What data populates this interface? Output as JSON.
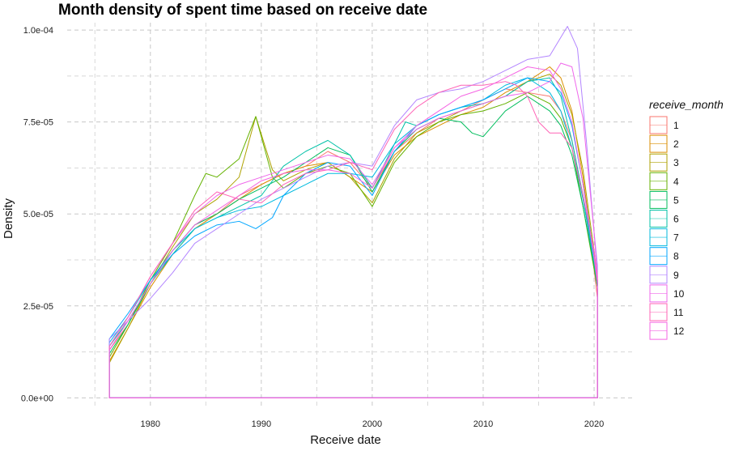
{
  "chart_data": {
    "type": "area",
    "title": "Month density of spent time based on receive date",
    "xlabel": "Receive date",
    "ylabel": "Density",
    "xlim": [
      1972.5,
      2023.5
    ],
    "ylim": [
      -3e-06,
      0.000102
    ],
    "x_ticks": [
      1980,
      1990,
      2000,
      2010,
      2020
    ],
    "x_tick_labels": [
      "1980",
      "1990",
      "2000",
      "2010",
      "2020"
    ],
    "y_ticks": [
      0,
      2.5e-05,
      5e-05,
      7.5e-05,
      0.0001
    ],
    "y_tick_labels": [
      "0.0e+00",
      "2.5e-05",
      "5.0e-05",
      "7.5e-05",
      "1.0e-04"
    ],
    "grid": true,
    "legend_title": "receive_month",
    "legend_position": "right",
    "series": [
      {
        "name": "1",
        "color": "#F8766D",
        "x": [
          1976.3,
          1978,
          1980,
          1982,
          1984,
          1986,
          1988,
          1990,
          1992,
          1994,
          1996,
          1998,
          2000,
          2002,
          2004,
          2006,
          2008,
          2010,
          2012,
          2014,
          2016,
          2017,
          2018,
          2019,
          2020,
          2020.3
        ],
        "y": [
          1.3e-05,
          2e-05,
          3.2e-05,
          4e-05,
          4.7e-05,
          5e-05,
          5.5e-05,
          5.8e-05,
          6.1e-05,
          6.3e-05,
          6.7e-05,
          6.4e-05,
          5.7e-05,
          6.7e-05,
          7.2e-05,
          7.6e-05,
          7.8e-05,
          8.1e-05,
          8.4e-05,
          8.3e-05,
          8.2e-05,
          7.8e-05,
          7e-05,
          5.5e-05,
          3.5e-05,
          2.7e-05
        ]
      },
      {
        "name": "2",
        "color": "#DB8E00",
        "x": [
          1976.3,
          1978,
          1980,
          1982,
          1984,
          1986,
          1988,
          1990,
          1992,
          1994,
          1996,
          1998,
          2000,
          2002,
          2004,
          2006,
          2008,
          2010,
          2012,
          2014,
          2016,
          2017,
          2018,
          2019,
          2020,
          2020.3
        ],
        "y": [
          1e-05,
          1.9e-05,
          3e-05,
          3.9e-05,
          4.6e-05,
          5e-05,
          5.4e-05,
          5.8e-05,
          6.1e-05,
          6.3e-05,
          6.4e-05,
          6e-05,
          5.6e-05,
          6.6e-05,
          7.1e-05,
          7.4e-05,
          7.7e-05,
          7.9e-05,
          8.3e-05,
          8.6e-05,
          9e-05,
          8.7e-05,
          7.8e-05,
          6e-05,
          3.8e-05,
          3e-05
        ]
      },
      {
        "name": "3",
        "color": "#AEA200",
        "x": [
          1976.3,
          1978,
          1980,
          1982,
          1984,
          1986,
          1988,
          1989.5,
          1991,
          1992,
          1994,
          1996,
          1998,
          2000,
          2002,
          2004,
          2006,
          2008,
          2010,
          2012,
          2014,
          2016,
          2017,
          2018,
          2019,
          2020,
          2020.3
        ],
        "y": [
          9.5e-06,
          1.9e-05,
          3.1e-05,
          4.1e-05,
          5e-05,
          5.4e-05,
          6e-05,
          7.65e-05,
          6.2e-05,
          5.9e-05,
          6.2e-05,
          6.4e-05,
          6e-05,
          5.3e-05,
          6.5e-05,
          7.2e-05,
          7.5e-05,
          7.8e-05,
          8e-05,
          8.2e-05,
          8.6e-05,
          8.8e-05,
          8.5e-05,
          7.7e-05,
          6.2e-05,
          4e-05,
          3.2e-05
        ]
      },
      {
        "name": "4",
        "color": "#64B200",
        "x": [
          1976.3,
          1978,
          1980,
          1982,
          1984,
          1985,
          1986,
          1988,
          1989.5,
          1991,
          1992,
          1994,
          1996,
          1998,
          2000,
          2002,
          2004,
          2006,
          2008,
          2010,
          2012,
          2014,
          2016,
          2017,
          2018,
          2019,
          2020,
          2020.3
        ],
        "y": [
          1.1e-05,
          2e-05,
          3.2e-05,
          4.2e-05,
          5.5e-05,
          6.1e-05,
          6e-05,
          6.5e-05,
          7.65e-05,
          6e-05,
          5.7e-05,
          6.1e-05,
          6.3e-05,
          6.1e-05,
          5.2e-05,
          6.4e-05,
          7.1e-05,
          7.5e-05,
          7.7e-05,
          7.8e-05,
          8e-05,
          8.3e-05,
          8e-05,
          7.6e-05,
          6.8e-05,
          5.2e-05,
          3.5e-05,
          3e-05
        ]
      },
      {
        "name": "5",
        "color": "#00BD5C",
        "x": [
          1976.3,
          1978,
          1980,
          1982,
          1984,
          1986,
          1988,
          1990,
          1992,
          1994,
          1996,
          1998,
          2000,
          2002,
          2004,
          2006,
          2008,
          2009,
          2010,
          2012,
          2014,
          2016,
          2017,
          2018,
          2019,
          2020,
          2020.3
        ],
        "y": [
          1.2e-05,
          2e-05,
          3.1e-05,
          4e-05,
          4.7e-05,
          5e-05,
          5.4e-05,
          5.7e-05,
          6e-05,
          6.4e-05,
          6.8e-05,
          6.6e-05,
          5.6e-05,
          6.7e-05,
          7.3e-05,
          7.6e-05,
          7.5e-05,
          7.2e-05,
          7.1e-05,
          7.8e-05,
          8.2e-05,
          7.8e-05,
          7.4e-05,
          6.6e-05,
          5.2e-05,
          3.6e-05,
          3e-05
        ]
      },
      {
        "name": "6",
        "color": "#00C1A7",
        "x": [
          1976.3,
          1978,
          1980,
          1982,
          1984,
          1986,
          1988,
          1990,
          1992,
          1994,
          1996,
          1998,
          2000,
          2002,
          2003,
          2004,
          2006,
          2008,
          2010,
          2012,
          2014,
          2016,
          2017,
          2018,
          2019,
          2020,
          2020.3
        ],
        "y": [
          1.4e-05,
          2.1e-05,
          3.1e-05,
          3.9e-05,
          4.6e-05,
          4.9e-05,
          5.2e-05,
          5.5e-05,
          6.3e-05,
          6.7e-05,
          7e-05,
          6.6e-05,
          5.7e-05,
          6.9e-05,
          7.5e-05,
          7.4e-05,
          7.7e-05,
          7.9e-05,
          8e-05,
          8.2e-05,
          8.6e-05,
          8.7e-05,
          8.2e-05,
          7e-05,
          5.5e-05,
          3.8e-05,
          3.2e-05
        ]
      },
      {
        "name": "7",
        "color": "#00BADE",
        "x": [
          1976.3,
          1978,
          1980,
          1982,
          1984,
          1986,
          1988,
          1990,
          1992,
          1994,
          1996,
          1998,
          2000,
          2002,
          2004,
          2006,
          2008,
          2010,
          2012,
          2014,
          2016,
          2017,
          2018,
          2019,
          2020,
          2020.3
        ],
        "y": [
          1.5e-05,
          2.2e-05,
          3.2e-05,
          4e-05,
          4.6e-05,
          4.9e-05,
          5.1e-05,
          5.2e-05,
          5.5e-05,
          5.8e-05,
          6.1e-05,
          6.1e-05,
          6e-05,
          6.9e-05,
          7.4e-05,
          7.7e-05,
          7.9e-05,
          8.1e-05,
          8.5e-05,
          8.7e-05,
          8.3e-05,
          7.8e-05,
          6.8e-05,
          5.4e-05,
          3.7e-05,
          3.1e-05
        ]
      },
      {
        "name": "8",
        "color": "#00A6FF",
        "x": [
          1976.3,
          1978,
          1980,
          1982,
          1984,
          1986,
          1988,
          1989.5,
          1991,
          1992,
          1994,
          1996,
          1998,
          2000,
          2002,
          2004,
          2006,
          2008,
          2010,
          2012,
          2014,
          2016,
          2017,
          2018,
          2019,
          2020,
          2020.3
        ],
        "y": [
          1.6e-05,
          2.3e-05,
          3.2e-05,
          3.9e-05,
          4.4e-05,
          4.7e-05,
          4.8e-05,
          4.6e-05,
          4.9e-05,
          5.5e-05,
          6.1e-05,
          6.4e-05,
          6.3e-05,
          5.5e-05,
          6.7e-05,
          7.4e-05,
          7.7e-05,
          7.9e-05,
          8.1e-05,
          8.4e-05,
          8.7e-05,
          8.6e-05,
          8.3e-05,
          7.4e-05,
          5.8e-05,
          3.9e-05,
          3.2e-05
        ]
      },
      {
        "name": "9",
        "color": "#B385FF",
        "x": [
          1976.3,
          1978,
          1980,
          1982,
          1984,
          1986,
          1988,
          1990,
          1992,
          1994,
          1996,
          1998,
          2000,
          2002,
          2004,
          2006,
          2008,
          2010,
          2012,
          2014,
          2016,
          2017,
          2017.6,
          2018.5,
          2019.3,
          2020,
          2020.3
        ],
        "y": [
          1.6e-05,
          2.1e-05,
          2.7e-05,
          3.4e-05,
          4.2e-05,
          4.6e-05,
          5e-05,
          5.4e-05,
          5.7e-05,
          6e-05,
          6.3e-05,
          6.4e-05,
          6.3e-05,
          7.4e-05,
          8.1e-05,
          8.3e-05,
          8.4e-05,
          8.6e-05,
          8.9e-05,
          9.2e-05,
          9.3e-05,
          9.8e-05,
          0.000101,
          9.5e-05,
          7e-05,
          4.5e-05,
          3.6e-05
        ]
      },
      {
        "name": "10",
        "color": "#EF67EB",
        "x": [
          1976.3,
          1978,
          1980,
          1982,
          1984,
          1986,
          1988,
          1990,
          1992,
          1994,
          1996,
          1998,
          2000,
          2002,
          2004,
          2006,
          2008,
          2010,
          2012,
          2014,
          2016,
          2017,
          2018,
          2019,
          2020,
          2020.3
        ],
        "y": [
          1.4e-05,
          2.2e-05,
          3.3e-05,
          4.2e-05,
          5e-05,
          5.5e-05,
          5.8e-05,
          6e-05,
          6.2e-05,
          6.4e-05,
          6.6e-05,
          6.5e-05,
          5.8e-05,
          6.8e-05,
          7.3e-05,
          7.6e-05,
          7.8e-05,
          8e-05,
          8.2e-05,
          8.3e-05,
          8.6e-05,
          9.1e-05,
          9e-05,
          7.6e-05,
          4.5e-05,
          3.3e-05
        ]
      },
      {
        "name": "11",
        "color": "#FF63B6",
        "x": [
          1976.3,
          1978,
          1980,
          1982,
          1984,
          1986,
          1988,
          1990,
          1992,
          1994,
          1996,
          1998,
          2000,
          2002,
          2004,
          2006,
          2008,
          2010,
          2012,
          2013,
          2014,
          2015,
          2016,
          2017,
          2018,
          2019,
          2020,
          2020.3
        ],
        "y": [
          1.4e-05,
          2.2e-05,
          3.3e-05,
          4.2e-05,
          5.1e-05,
          5.6e-05,
          5.4e-05,
          5.3e-05,
          5.8e-05,
          6.1e-05,
          6.2e-05,
          6.4e-05,
          6.2e-05,
          7.3e-05,
          7.9e-05,
          8.3e-05,
          8.5e-05,
          8.5e-05,
          8.6e-05,
          8.5e-05,
          8.2e-05,
          7.5e-05,
          7.2e-05,
          7.2e-05,
          6.8e-05,
          5.5e-05,
          4e-05,
          3.2e-05
        ]
      },
      {
        "name": "12",
        "color": "#F564E3",
        "x": [
          1976.3,
          1978,
          1980,
          1982,
          1984,
          1986,
          1988,
          1990,
          1992,
          1994,
          1996,
          1998,
          2000,
          2002,
          2004,
          2006,
          2008,
          2010,
          2012,
          2014,
          2016,
          2017,
          2018,
          2019,
          2020,
          2020.3
        ],
        "y": [
          1.3e-05,
          2.1e-05,
          3.1e-05,
          4e-05,
          4.7e-05,
          5.1e-05,
          5.5e-05,
          5.9e-05,
          6.1e-05,
          6.2e-05,
          6.2e-05,
          6.1e-05,
          5.7e-05,
          6.8e-05,
          7.4e-05,
          7.8e-05,
          8.2e-05,
          8.4e-05,
          8.7e-05,
          9e-05,
          8.9e-05,
          8.4e-05,
          7.5e-05,
          5.8e-05,
          3.8e-05,
          3.1e-05
        ]
      }
    ]
  }
}
